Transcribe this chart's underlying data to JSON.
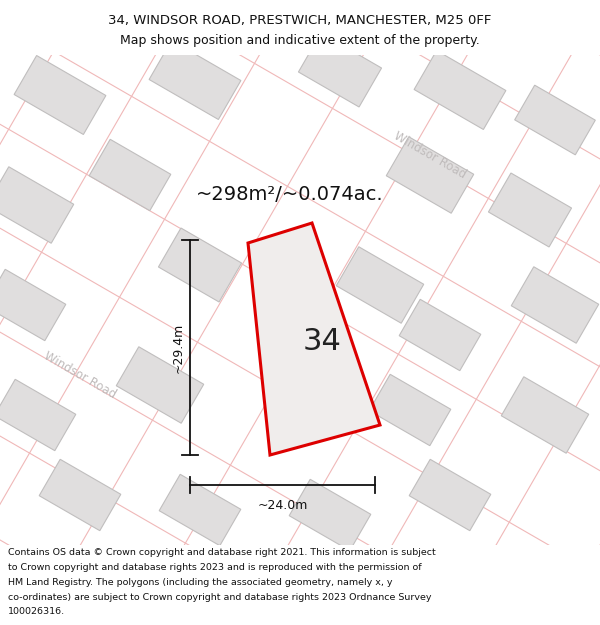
{
  "title_line1": "34, WINDSOR ROAD, PRESTWICH, MANCHESTER, M25 0FF",
  "title_line2": "Map shows position and indicative extent of the property.",
  "area_label": "~298m²/~0.074ac.",
  "width_label": "~24.0m",
  "height_label": "~29.4m",
  "number_label": "34",
  "road_label_diag": "Windsor Road",
  "footer_lines": [
    "Contains OS data © Crown copyright and database right 2021. This information is subject",
    "to Crown copyright and database rights 2023 and is reproduced with the permission of",
    "HM Land Registry. The polygons (including the associated geometry, namely x, y",
    "co-ordinates) are subject to Crown copyright and database rights 2023 Ordnance Survey",
    "100026316."
  ],
  "bg_color": "#ffffff",
  "map_bg": "#f8f7f7",
  "building_color": "#e0dede",
  "building_edge": "#c0bebe",
  "road_line_color": "#f0b8b8",
  "road_label_color": "#c0bcbc",
  "plot_fill": "#f0edec",
  "plot_edge": "#dd0000",
  "dim_color": "#111111",
  "title_color": "#111111",
  "footer_color": "#111111",
  "title_fontsize": 9.5,
  "subtitle_fontsize": 9.0,
  "area_fontsize": 14,
  "number_fontsize": 22,
  "dim_fontsize": 9,
  "road_label_fontsize": 8.5,
  "footer_fontsize": 6.8
}
